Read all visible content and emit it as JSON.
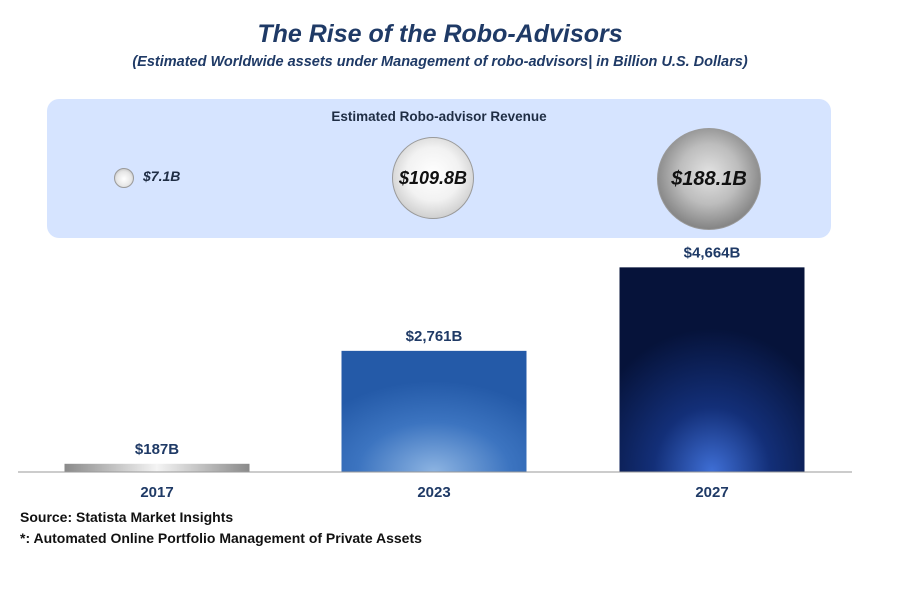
{
  "chart_data": {
    "type": "bar",
    "title": "The Rise of the Robo-Advisors",
    "subtitle": "(Estimated  Worldwide assets under Management of robo-advisors| in Billion U.S. Dollars)",
    "categories": [
      "2017",
      "2023",
      "2027"
    ],
    "values": [
      187,
      2761,
      4664
    ],
    "value_labels": [
      "$187B",
      "$2,761B",
      "$4,664B"
    ],
    "ylim": [
      0,
      4900
    ],
    "grid": false,
    "bar_colors": [
      "#b8b8b8",
      "#2f67b3",
      "#0b1a4a"
    ],
    "revenue": {
      "title": "Estimated Robo-advisor Revenue",
      "values": [
        7.1,
        109.8,
        188.1
      ],
      "labels": [
        "$7.1B",
        "$109.8B",
        "$188.1B"
      ]
    }
  },
  "footnotes": {
    "source": "Source: Statista Market Insights",
    "note": "*: Automated Online Portfolio Management of Private Assets"
  },
  "colors": {
    "title": "#1f3a66",
    "panel": "#d6e4ff",
    "label": "#1f3a66",
    "axis": "#9a9a9a"
  }
}
